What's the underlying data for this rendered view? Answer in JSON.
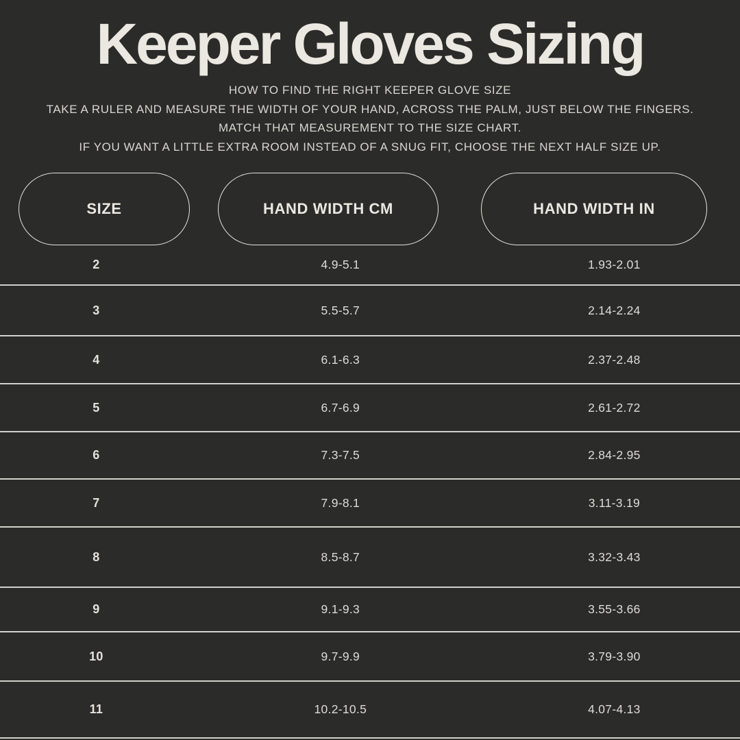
{
  "page": {
    "background_color": "#2b2b29",
    "text_color": "#eae8e1",
    "divider_color": "#d3d1cb"
  },
  "header": {
    "title": "Keeper Gloves Sizing",
    "subtitle_lines": [
      "HOW TO FIND THE RIGHT KEEPER GLOVE SIZE",
      "TAKE A RULER AND MEASURE THE WIDTH OF YOUR HAND, ACROSS THE PALM, JUST BELOW THE FINGERS.",
      "MATCH THAT MEASUREMENT TO THE SIZE CHART.",
      "IF YOU WANT A LITTLE EXTRA ROOM INSTEAD OF A SNUG FIT, CHOOSE THE NEXT HALF SIZE UP."
    ]
  },
  "columns": {
    "size_label": "SIZE",
    "cm_label": "HAND WIDTH CM",
    "in_label": "HAND WIDTH IN"
  },
  "table": {
    "rows": [
      {
        "size": "2",
        "cm": "4.9-5.1",
        "in": "1.93-2.01"
      },
      {
        "size": "3",
        "cm": "5.5-5.7",
        "in": "2.14-2.24"
      },
      {
        "size": "4",
        "cm": "6.1-6.3",
        "in": "2.37-2.48"
      },
      {
        "size": "5",
        "cm": "6.7-6.9",
        "in": "2.61-2.72"
      },
      {
        "size": "6",
        "cm": "7.3-7.5",
        "in": "2.84-2.95"
      },
      {
        "size": "7",
        "cm": "7.9-8.1",
        "in": "3.11-3.19"
      },
      {
        "size": "8",
        "cm": "8.5-8.7",
        "in": "3.32-3.43"
      },
      {
        "size": "9",
        "cm": "9.1-9.3",
        "in": "3.55-3.66"
      },
      {
        "size": "10",
        "cm": "9.7-9.9",
        "in": "3.79-3.90"
      },
      {
        "size": "11",
        "cm": "10.2-10.5",
        "in": "4.07-4.13"
      }
    ]
  },
  "chart_data": {
    "type": "table",
    "title": "Keeper Gloves Sizing",
    "columns": [
      "SIZE",
      "HAND WIDTH CM",
      "HAND WIDTH IN"
    ],
    "rows": [
      [
        "2",
        "4.9-5.1",
        "1.93-2.01"
      ],
      [
        "3",
        "5.5-5.7",
        "2.14-2.24"
      ],
      [
        "4",
        "6.1-6.3",
        "2.37-2.48"
      ],
      [
        "5",
        "6.7-6.9",
        "2.61-2.72"
      ],
      [
        "6",
        "7.3-7.5",
        "2.84-2.95"
      ],
      [
        "7",
        "7.9-8.1",
        "3.11-3.19"
      ],
      [
        "8",
        "8.5-8.7",
        "3.32-3.43"
      ],
      [
        "9",
        "9.1-9.3",
        "3.55-3.66"
      ],
      [
        "10",
        "9.7-9.9",
        "3.79-3.90"
      ],
      [
        "11",
        "10.2-10.5",
        "4.07-4.13"
      ]
    ]
  }
}
